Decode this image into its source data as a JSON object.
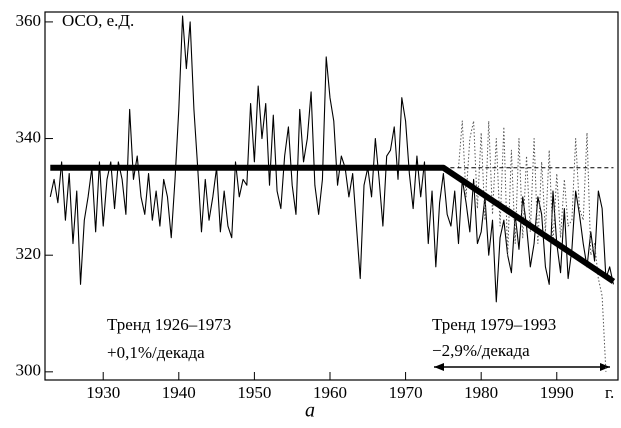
{
  "chart_data": {
    "type": "line",
    "y_label": "ОСО, е.Д.",
    "x_unit": "г.",
    "caption": "а",
    "annotations": [
      "Тренд 1926–1973",
      "+0,1%/декада",
      "Тренд 1979–1993",
      "−2,9%/декада"
    ],
    "xlim": [
      1922.3,
      1998.1
    ],
    "ylim": [
      298.6,
      361.7
    ],
    "xticks": [
      1930,
      1940,
      1950,
      1960,
      1970,
      1980,
      1990
    ],
    "yticks": [
      300,
      320,
      340,
      360
    ],
    "series": [
      {
        "style": "solid",
        "color": "#000000",
        "x": [
          1923,
          1923.5,
          1924,
          1924.5,
          1925,
          1925.5,
          1926,
          1926.5,
          1927,
          1927.5,
          1928,
          1928.5,
          1929,
          1929.5,
          1930,
          1930.5,
          1931,
          1931.5,
          1932,
          1932.5,
          1933,
          1933.5,
          1934,
          1934.5,
          1935,
          1935.5,
          1936,
          1936.5,
          1937,
          1937.5,
          1938,
          1938.5,
          1939,
          1939.5,
          1940,
          1940.5,
          1941,
          1941.5,
          1942,
          1942.5,
          1943,
          1943.5,
          1944,
          1944.5,
          1945,
          1945.5,
          1946,
          1946.5,
          1947,
          1947.5,
          1948,
          1948.5,
          1949,
          1949.5,
          1950,
          1950.5,
          1951,
          1951.5,
          1952,
          1952.5,
          1953,
          1953.5,
          1954,
          1954.5,
          1955,
          1955.5,
          1956,
          1956.5,
          1957,
          1957.5,
          1958,
          1958.5,
          1959,
          1959.5,
          1960,
          1960.5,
          1961,
          1961.5,
          1962,
          1962.5,
          1963,
          1963.5,
          1964,
          1964.5,
          1965,
          1965.5,
          1966,
          1966.5,
          1967,
          1967.5,
          1968,
          1968.5,
          1969,
          1969.5,
          1970,
          1970.5,
          1971,
          1971.5,
          1972,
          1972.5,
          1973,
          1973.5,
          1974,
          1974.5,
          1975,
          1975.5,
          1976,
          1976.5,
          1977,
          1977.5,
          1978,
          1978.5,
          1979,
          1979.5,
          1980,
          1980.5,
          1981,
          1981.5,
          1982,
          1982.5,
          1983,
          1983.5,
          1984,
          1984.5,
          1985,
          1985.5,
          1986,
          1986.5,
          1987,
          1987.5,
          1988,
          1988.5,
          1989,
          1989.5,
          1990,
          1990.5,
          1991,
          1991.5,
          1992,
          1992.5,
          1993,
          1993.5,
          1994,
          1994.5,
          1995,
          1995.5,
          1996,
          1996.5,
          1997,
          1997.5
        ],
        "values": [
          330,
          333,
          329,
          336,
          326,
          334,
          322,
          331,
          315,
          326,
          330,
          335,
          324,
          336,
          325,
          333,
          336,
          328,
          336,
          333,
          327,
          345,
          333,
          337,
          330,
          327,
          334,
          326,
          331,
          325,
          333,
          330,
          323,
          333,
          345,
          361,
          352,
          360,
          345,
          335,
          324,
          333,
          326,
          330,
          335,
          324,
          331,
          325,
          323,
          336,
          330,
          333,
          332,
          346,
          336,
          349,
          340,
          346,
          332,
          344,
          331,
          328,
          337,
          342,
          332,
          327,
          345,
          336,
          340,
          348,
          332,
          327,
          333,
          354,
          347,
          343,
          332,
          337,
          335,
          330,
          334,
          325,
          316,
          332,
          335,
          330,
          340,
          333,
          325,
          337,
          338,
          342,
          333,
          347,
          343,
          334,
          328,
          337,
          330,
          336,
          322,
          331,
          318,
          329,
          334,
          327,
          325,
          331,
          322,
          333,
          329,
          324,
          333,
          322,
          324,
          330,
          320,
          326,
          312,
          323,
          326,
          320,
          317,
          327,
          321,
          330,
          325,
          318,
          322,
          330,
          327,
          318,
          315,
          331,
          322,
          317,
          328,
          316,
          321,
          331,
          327,
          322,
          318,
          324,
          319,
          331,
          328,
          316,
          318,
          315
        ]
      },
      {
        "style": "dotted",
        "color": "#555555",
        "x": [
          1977,
          1977.5,
          1978,
          1978.5,
          1979,
          1979.5,
          1980,
          1980.5,
          1981,
          1981.5,
          1982,
          1982.5,
          1983,
          1983.5,
          1984,
          1984.5,
          1985,
          1985.5,
          1986,
          1986.5,
          1987,
          1987.5,
          1988,
          1988.5,
          1989,
          1989.5,
          1990,
          1990.5,
          1991,
          1991.5,
          1992,
          1992.5,
          1993,
          1993.5,
          1994,
          1994.5,
          1995,
          1995.5,
          1996,
          1996.5
        ],
        "values": [
          335,
          343,
          330,
          340,
          343,
          328,
          341,
          326,
          343,
          327,
          340,
          325,
          342,
          320,
          338,
          322,
          340,
          323,
          337,
          324,
          340,
          322,
          336,
          324,
          338,
          322,
          334,
          323,
          333,
          325,
          326,
          340,
          328,
          326,
          341,
          320,
          322,
          316,
          313,
          300
        ]
      },
      {
        "style": "trend",
        "color": "#000000",
        "x": [
          1923,
          1975,
          1997.5
        ],
        "values": [
          335,
          335,
          315.5
        ]
      },
      {
        "style": "dashed",
        "color": "#000000",
        "x": [
          1975,
          1997.5
        ],
        "values": [
          335,
          335
        ]
      }
    ]
  }
}
